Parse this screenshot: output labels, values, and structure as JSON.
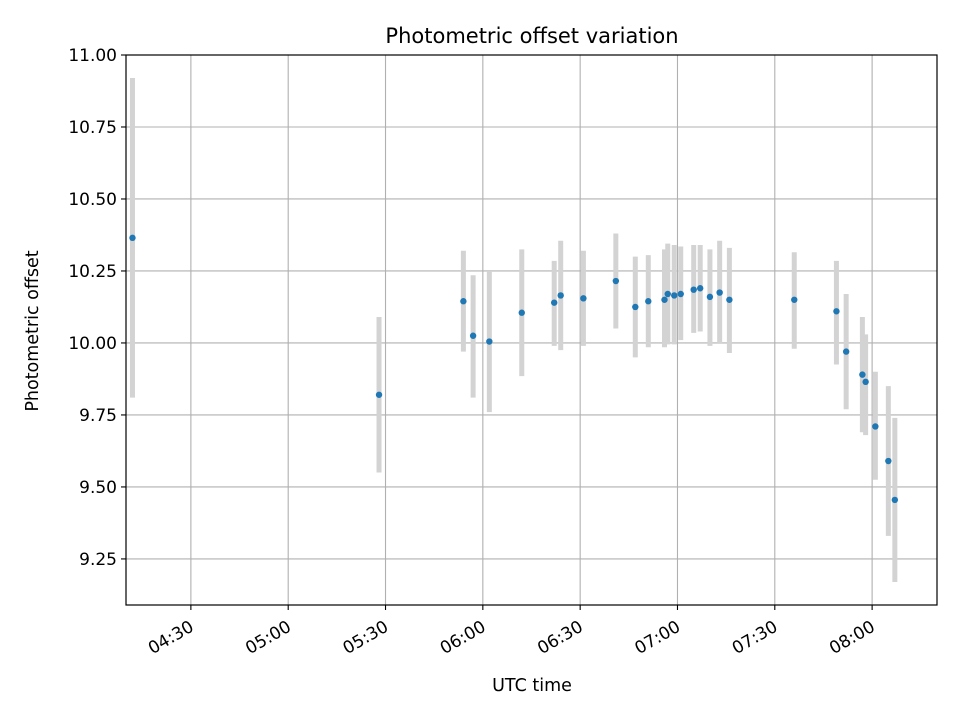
{
  "chart_data": {
    "type": "scatter",
    "title": "Photometric offset variation",
    "xlabel": "UTC time",
    "ylabel": "Photometric offset",
    "x_ticks": [
      "04:30",
      "05:00",
      "05:30",
      "06:00",
      "06:30",
      "07:00",
      "07:30",
      "08:00"
    ],
    "y_ticks": [
      "9.25",
      "9.50",
      "9.75",
      "10.00",
      "10.25",
      "10.50",
      "10.75",
      "11.00"
    ],
    "xlim": [
      "04:10",
      "08:20"
    ],
    "ylim": [
      9.09,
      11.0
    ],
    "grid": true,
    "errorbar_color": "#d3d3d3",
    "point_color": "#1f77b4",
    "points": [
      {
        "t": "04:12",
        "y": 10.365,
        "lo": 9.81,
        "hi": 10.92
      },
      {
        "t": "05:28",
        "y": 9.82,
        "lo": 9.55,
        "hi": 10.09
      },
      {
        "t": "05:54",
        "y": 10.145,
        "lo": 9.97,
        "hi": 10.32
      },
      {
        "t": "05:57",
        "y": 10.025,
        "lo": 9.81,
        "hi": 10.235
      },
      {
        "t": "06:02",
        "y": 10.005,
        "lo": 9.76,
        "hi": 10.25
      },
      {
        "t": "06:12",
        "y": 10.105,
        "lo": 9.885,
        "hi": 10.325
      },
      {
        "t": "06:22",
        "y": 10.14,
        "lo": 9.99,
        "hi": 10.285
      },
      {
        "t": "06:24",
        "y": 10.165,
        "lo": 9.975,
        "hi": 10.355
      },
      {
        "t": "06:31",
        "y": 10.155,
        "lo": 9.99,
        "hi": 10.32
      },
      {
        "t": "06:41",
        "y": 10.215,
        "lo": 10.05,
        "hi": 10.38
      },
      {
        "t": "06:47",
        "y": 10.125,
        "lo": 9.95,
        "hi": 10.3
      },
      {
        "t": "06:51",
        "y": 10.145,
        "lo": 9.985,
        "hi": 10.305
      },
      {
        "t": "06:56",
        "y": 10.15,
        "lo": 9.985,
        "hi": 10.325
      },
      {
        "t": "06:57",
        "y": 10.17,
        "lo": 9.995,
        "hi": 10.345
      },
      {
        "t": "06:59",
        "y": 10.165,
        "lo": 9.995,
        "hi": 10.34
      },
      {
        "t": "07:01",
        "y": 10.17,
        "lo": 10.01,
        "hi": 10.335
      },
      {
        "t": "07:05",
        "y": 10.185,
        "lo": 10.035,
        "hi": 10.34
      },
      {
        "t": "07:07",
        "y": 10.19,
        "lo": 10.04,
        "hi": 10.34
      },
      {
        "t": "07:10",
        "y": 10.16,
        "lo": 9.99,
        "hi": 10.325
      },
      {
        "t": "07:13",
        "y": 10.175,
        "lo": 10.0,
        "hi": 10.355
      },
      {
        "t": "07:16",
        "y": 10.15,
        "lo": 9.965,
        "hi": 10.33
      },
      {
        "t": "07:36",
        "y": 10.15,
        "lo": 9.98,
        "hi": 10.315
      },
      {
        "t": "07:49",
        "y": 10.11,
        "lo": 9.925,
        "hi": 10.285
      },
      {
        "t": "07:52",
        "y": 9.97,
        "lo": 9.77,
        "hi": 10.17
      },
      {
        "t": "07:57",
        "y": 9.89,
        "lo": 9.69,
        "hi": 10.09
      },
      {
        "t": "07:58",
        "y": 9.865,
        "lo": 9.68,
        "hi": 10.03
      },
      {
        "t": "08:01",
        "y": 9.71,
        "lo": 9.525,
        "hi": 9.9
      },
      {
        "t": "08:05",
        "y": 9.59,
        "lo": 9.33,
        "hi": 9.85
      },
      {
        "t": "08:07",
        "y": 9.455,
        "lo": 9.17,
        "hi": 9.74
      }
    ]
  }
}
